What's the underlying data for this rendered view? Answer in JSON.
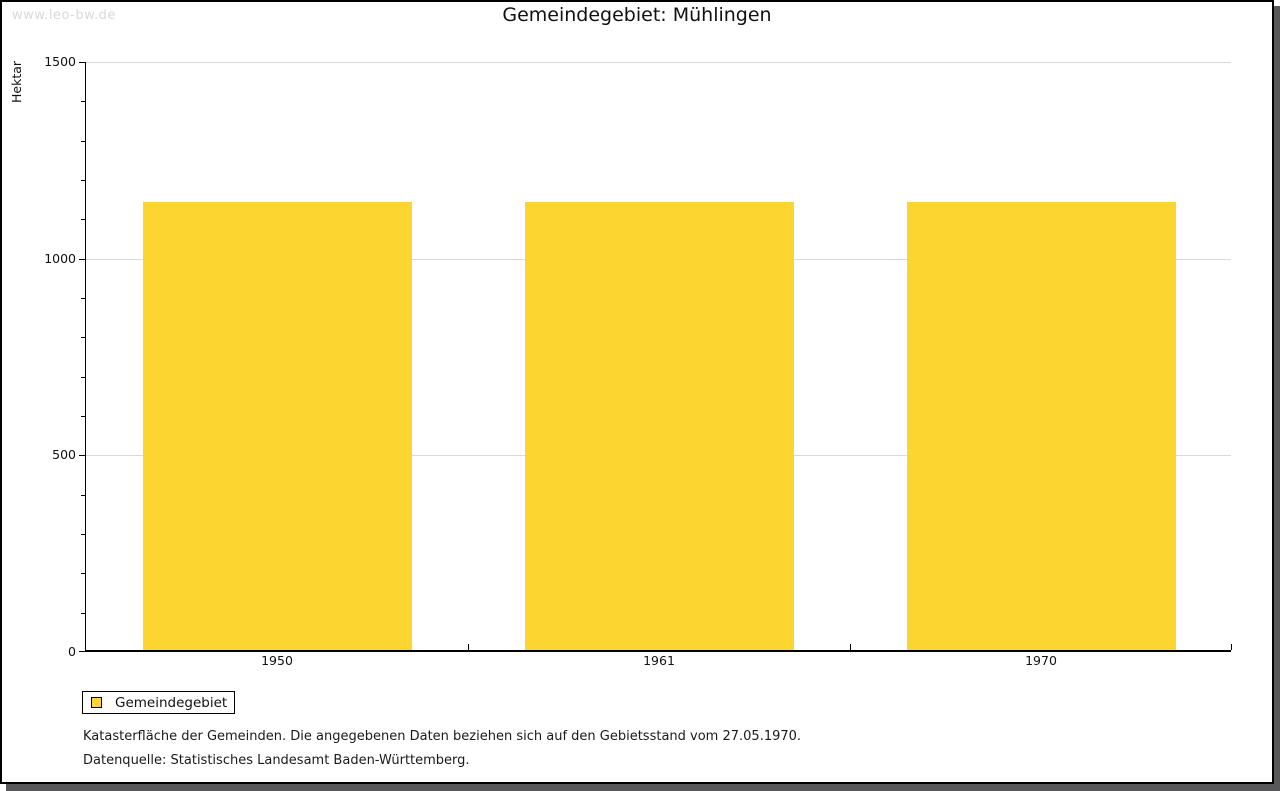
{
  "page": {
    "watermark": "www.leo-bw.de",
    "title": "Gemeindegebiet: Mühlingen"
  },
  "chart_data": {
    "type": "bar",
    "categories": [
      "1950",
      "1961",
      "1970"
    ],
    "series": [
      {
        "name": "Gemeindegebiet",
        "values": [
          1140,
          1140,
          1140
        ]
      }
    ],
    "title": "Gemeindegebiet: Mühlingen",
    "xlabel": "",
    "ylabel": "Hektar",
    "ylim": [
      0,
      1500
    ],
    "y_major_step": 500,
    "y_minor_step": 100,
    "grid": "horizontal-major-only",
    "legend_position": "bottom-left-boxed",
    "bar_color": "#fcd530",
    "gridline_color": "#d9d9d9",
    "bar_width_fraction": 0.704
  },
  "legend": {
    "items": [
      {
        "label": "Gemeindegebiet",
        "color": "#fcd530"
      }
    ]
  },
  "footer": {
    "line1": "Katasterfläche der Gemeinden. Die angegebenen Daten beziehen sich auf den Gebietsstand vom 27.05.1970.",
    "line2": "Datenquelle: Statistisches Landesamt Baden-Württemberg."
  }
}
